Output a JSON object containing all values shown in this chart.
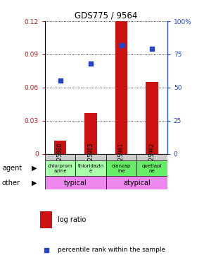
{
  "title": "GDS775 / 9564",
  "samples": [
    "GSM25980",
    "GSM25983",
    "GSM25981",
    "GSM25982"
  ],
  "log_ratios": [
    0.012,
    0.037,
    0.121,
    0.065
  ],
  "percentile_ranks": [
    55,
    68,
    82,
    79
  ],
  "ylim_left": [
    0,
    0.12
  ],
  "ylim_right": [
    0,
    100
  ],
  "yticks_left": [
    0,
    0.03,
    0.06,
    0.09,
    0.12
  ],
  "yticks_right": [
    0,
    25,
    50,
    75,
    100
  ],
  "ytick_labels_left": [
    "0",
    "0.03",
    "0.06",
    "0.09",
    "0.12"
  ],
  "ytick_labels_right": [
    "0",
    "25",
    "50",
    "75",
    "100%"
  ],
  "bar_color": "#cc1111",
  "dot_color": "#2244cc",
  "agent_labels": [
    "chlorprom\nazine",
    "thioridazin\ne",
    "olanzap\nine",
    "quetiapi\nne"
  ],
  "agent_color_typical": "#aaffaa",
  "agent_color_atypical": "#66ee66",
  "other_color": "#ee88ee",
  "sample_bg": "#cccccc",
  "legend_bar_label": "log ratio",
  "legend_dot_label": "percentile rank within the sample"
}
